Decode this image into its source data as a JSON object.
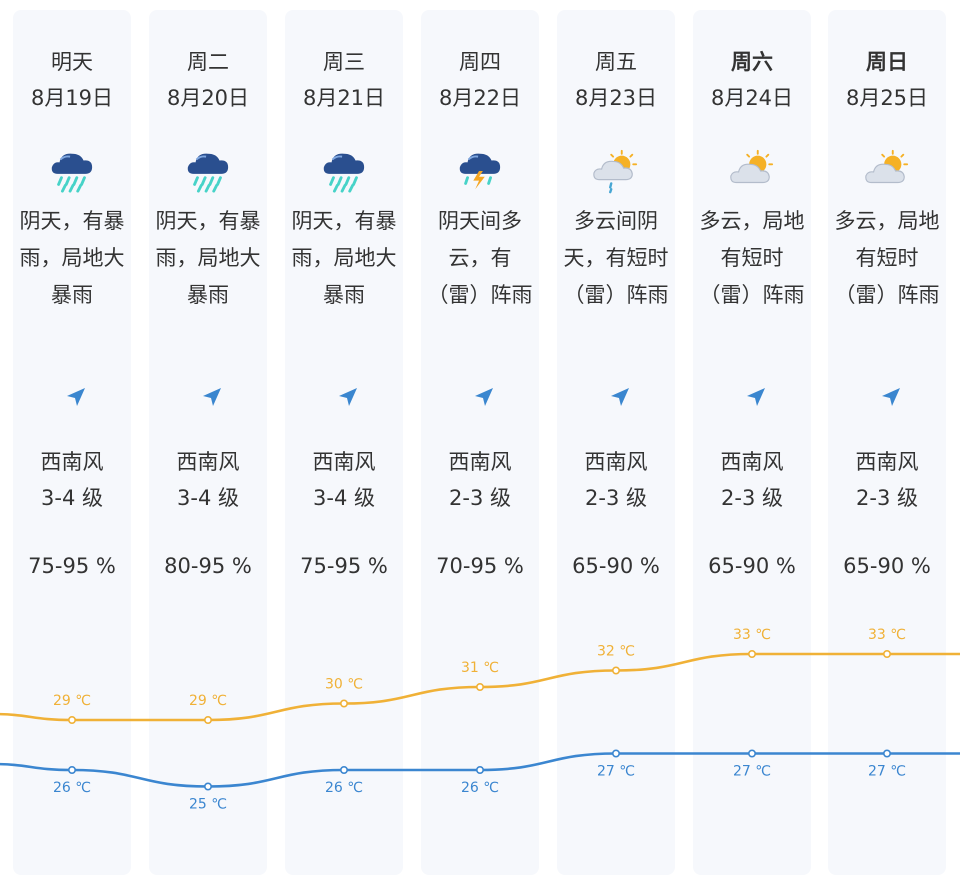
{
  "colors": {
    "high_line": "#f0b137",
    "low_line": "#3b86d0",
    "column_bg": "#f6f8fc",
    "text": "#333333"
  },
  "days": [
    {
      "day": "明天",
      "date": "8月19日",
      "weekend": false,
      "icon": "heavy-rain-icon",
      "cond": [
        "阴天，有暴",
        "雨，局地大",
        "暴雨"
      ],
      "wind_icon": "wind-arrow-icon",
      "wind_dir": "西南风",
      "wind_level": "3-4 级",
      "humidity": "75-95 %",
      "high": "29 ℃",
      "low": "26 ℃"
    },
    {
      "day": "周二",
      "date": "8月20日",
      "weekend": false,
      "icon": "heavy-rain-icon",
      "cond": [
        "阴天，有暴",
        "雨，局地大",
        "暴雨"
      ],
      "wind_icon": "wind-arrow-icon",
      "wind_dir": "西南风",
      "wind_level": "3-4 级",
      "humidity": "80-95 %",
      "high": "29 ℃",
      "low": "25 ℃"
    },
    {
      "day": "周三",
      "date": "8月21日",
      "weekend": false,
      "icon": "heavy-rain-icon",
      "cond": [
        "阴天，有暴",
        "雨，局地大",
        "暴雨"
      ],
      "wind_icon": "wind-arrow-icon",
      "wind_dir": "西南风",
      "wind_level": "3-4 级",
      "humidity": "75-95 %",
      "high": "30 ℃",
      "low": "26 ℃"
    },
    {
      "day": "周四",
      "date": "8月22日",
      "weekend": false,
      "icon": "thunderstorm-icon",
      "cond": [
        "阴天间多",
        "云，有",
        "（雷）阵雨"
      ],
      "wind_icon": "wind-arrow-icon",
      "wind_dir": "西南风",
      "wind_level": "2-3 级",
      "humidity": "70-95 %",
      "high": "31 ℃",
      "low": "26 ℃"
    },
    {
      "day": "周五",
      "date": "8月23日",
      "weekend": false,
      "icon": "partly-cloudy-shower-icon",
      "cond": [
        "多云间阴",
        "天，有短时",
        "（雷）阵雨"
      ],
      "wind_icon": "wind-arrow-icon",
      "wind_dir": "西南风",
      "wind_level": "2-3 级",
      "humidity": "65-90 %",
      "high": "32 ℃",
      "low": "27 ℃"
    },
    {
      "day": "周六",
      "date": "8月24日",
      "weekend": true,
      "icon": "sun-behind-cloud-icon",
      "cond": [
        "多云，局地",
        "有短时",
        "（雷）阵雨"
      ],
      "wind_icon": "wind-arrow-icon",
      "wind_dir": "西南风",
      "wind_level": "2-3 级",
      "humidity": "65-90 %",
      "high": "33 ℃",
      "low": "27 ℃"
    },
    {
      "day": "周日",
      "date": "8月25日",
      "weekend": true,
      "icon": "sun-behind-cloud-icon",
      "cond": [
        "多云，局地",
        "有短时",
        "（雷）阵雨"
      ],
      "wind_icon": "wind-arrow-icon",
      "wind_dir": "西南风",
      "wind_level": "2-3 级",
      "humidity": "65-90 %",
      "high": "33 ℃",
      "low": "27 ℃"
    }
  ],
  "chart_data": {
    "type": "line",
    "categories": [
      "8月19日",
      "8月20日",
      "8月21日",
      "8月22日",
      "8月23日",
      "8月24日",
      "8月25日"
    ],
    "series": [
      {
        "values": [
          29,
          29,
          30,
          31,
          32,
          33,
          33
        ],
        "color": "#f0b137"
      },
      {
        "values": [
          26,
          25,
          26,
          26,
          27,
          27,
          27
        ],
        "color": "#3b86d0"
      }
    ]
  }
}
